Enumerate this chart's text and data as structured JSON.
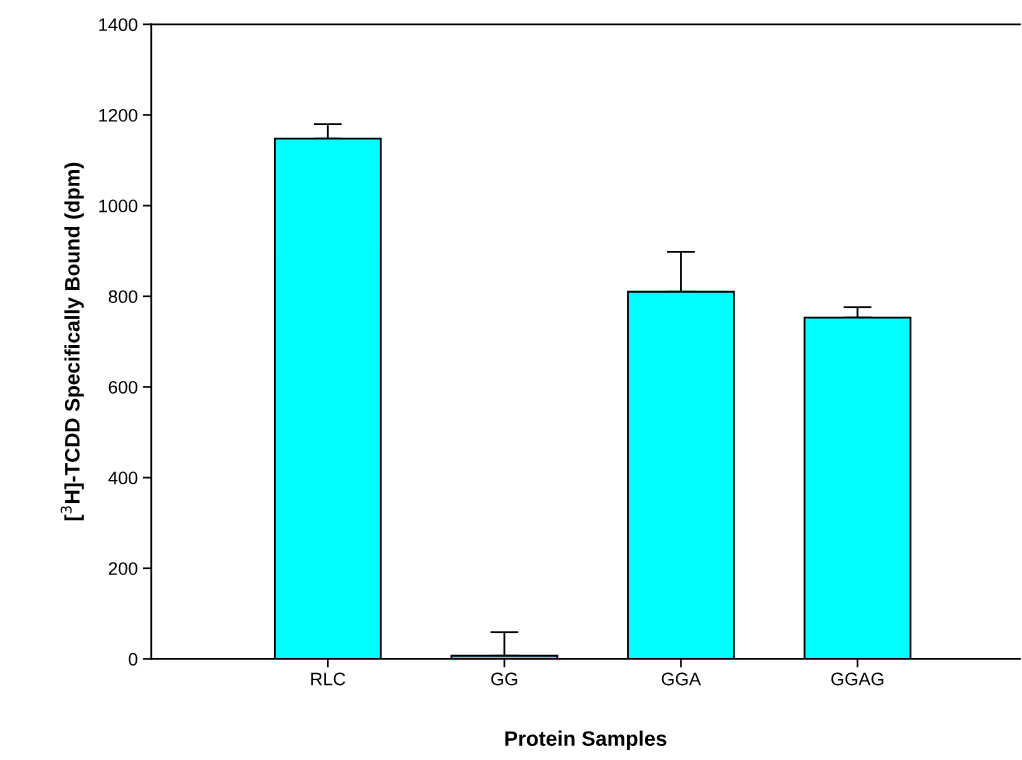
{
  "chart_data": {
    "type": "bar",
    "xlabel": "Protein Samples",
    "ylabel": "[$^{3}$H]-TCDD Specifically Bound (dpm)",
    "categories": [
      "RLC",
      "GG",
      "GGA",
      "GGAG"
    ],
    "values": [
      1148,
      7,
      810,
      753
    ],
    "errors": [
      [
        1148,
        1180
      ],
      [
        7,
        59
      ],
      [
        810,
        898
      ],
      [
        753,
        776
      ]
    ],
    "color": "#00ffff",
    "ylim": [
      0,
      1400
    ],
    "yticks": [
      0,
      200,
      400,
      600,
      800,
      1000,
      1200,
      1400
    ],
    "grid": false
  }
}
